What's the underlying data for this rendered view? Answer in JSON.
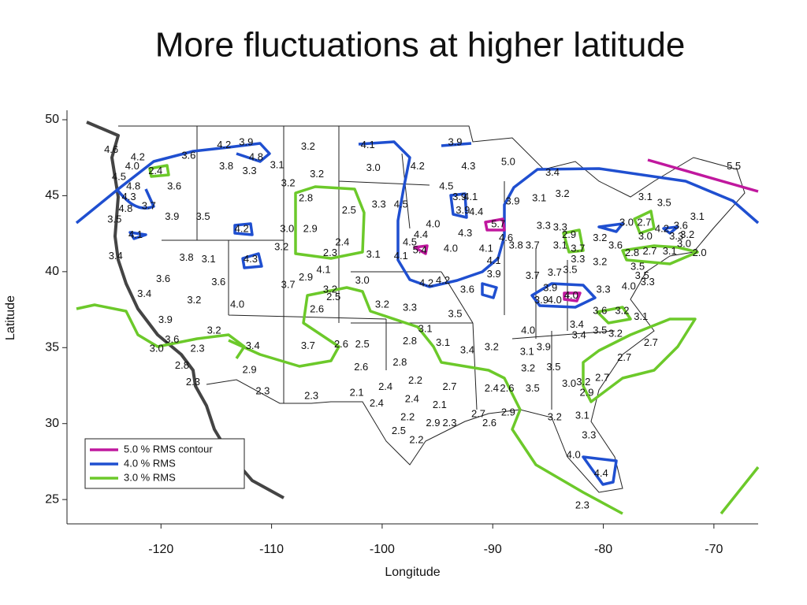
{
  "chart_data": {
    "type": "map",
    "title": "More fluctuations at higher latitude",
    "x_label": "Longitude",
    "y_label": "Latitude",
    "xlim": [
      -128.5,
      -66
    ],
    "ylim": [
      23.4,
      50
    ],
    "xticks": [
      -120,
      -110,
      -100,
      -90,
      -80,
      -70
    ],
    "yticks": [
      25,
      30,
      35,
      40,
      45,
      50
    ],
    "legend_corner": "lower left",
    "series": [
      {
        "name": "5.0 % RMS contour",
        "color": "#c0189e"
      },
      {
        "name": "4.0 % RMS",
        "color": "#1f4fd0"
      },
      {
        "name": "3.0 % RMS",
        "color": "#6cc92a"
      }
    ],
    "points": [
      {
        "x": -124.5,
        "y": 48,
        "value": 4.6,
        "label": "4.6"
      },
      {
        "x": -122.1,
        "y": 47.5,
        "value": 4.2,
        "label": "4.2"
      },
      {
        "x": -117.5,
        "y": 47.6,
        "value": 3.6,
        "label": "3.6"
      },
      {
        "x": -114.3,
        "y": 48.3,
        "value": 4.2,
        "label": "4.2"
      },
      {
        "x": -112.3,
        "y": 48.5,
        "value": 3.9,
        "label": "3.9"
      },
      {
        "x": -111.4,
        "y": 47.5,
        "value": 4.8,
        "label": "4.8"
      },
      {
        "x": -109.5,
        "y": 47,
        "value": 3.1,
        "label": "3.1"
      },
      {
        "x": -114.1,
        "y": 46.9,
        "value": 3.8,
        "label": "3.8"
      },
      {
        "x": -112,
        "y": 46.6,
        "value": 3.3,
        "label": "3.3"
      },
      {
        "x": -106.7,
        "y": 48.2,
        "value": 3.2,
        "label": "3.2"
      },
      {
        "x": -105.9,
        "y": 46.4,
        "value": 3.2,
        "label": "3.2"
      },
      {
        "x": -108.5,
        "y": 45.8,
        "value": 3.2,
        "label": "3.2"
      },
      {
        "x": -100.8,
        "y": 46.8,
        "value": 3,
        "label": "3.0"
      },
      {
        "x": -101.3,
        "y": 48.3,
        "value": 4.1,
        "label": "4.1"
      },
      {
        "x": -93.4,
        "y": 48.5,
        "value": 3.9,
        "label": "3.9"
      },
      {
        "x": -96.8,
        "y": 46.9,
        "value": 4.2,
        "label": "4.2"
      },
      {
        "x": -92.2,
        "y": 46.9,
        "value": 4.3,
        "label": "4.3"
      },
      {
        "x": -88.6,
        "y": 47.2,
        "value": 5,
        "label": "5.0"
      },
      {
        "x": -122.6,
        "y": 46.9,
        "value": 4,
        "label": "4.0"
      },
      {
        "x": -123.8,
        "y": 46.2,
        "value": 4.5,
        "label": "4.5"
      },
      {
        "x": -120.5,
        "y": 46.6,
        "value": 2.4,
        "label": "2.4"
      },
      {
        "x": -122.5,
        "y": 45.6,
        "value": 4.8,
        "label": "4.8"
      },
      {
        "x": -118.8,
        "y": 45.6,
        "value": 3.6,
        "label": "3.6"
      },
      {
        "x": -122.9,
        "y": 44.9,
        "value": 4.3,
        "label": "4.3"
      },
      {
        "x": -121.1,
        "y": 44.3,
        "value": 3.7,
        "label": "3.7"
      },
      {
        "x": -123.2,
        "y": 44.1,
        "value": 4.8,
        "label": "4.8"
      },
      {
        "x": -124.2,
        "y": 43.4,
        "value": 3.5,
        "label": "3.5"
      },
      {
        "x": -119,
        "y": 43.6,
        "value": 3.9,
        "label": "3.9"
      },
      {
        "x": -116.2,
        "y": 43.6,
        "value": 3.5,
        "label": "3.5"
      },
      {
        "x": -106.9,
        "y": 44.8,
        "value": 2.8,
        "label": "2.8"
      },
      {
        "x": -103,
        "y": 44,
        "value": 2.5,
        "label": "2.5"
      },
      {
        "x": -100.3,
        "y": 44.4,
        "value": 3.3,
        "label": "3.3"
      },
      {
        "x": -98.3,
        "y": 44.4,
        "value": 4.5,
        "label": "4.5"
      },
      {
        "x": -108.6,
        "y": 42.8,
        "value": 3,
        "label": "3.0"
      },
      {
        "x": -106.5,
        "y": 42.8,
        "value": 2.9,
        "label": "2.9"
      },
      {
        "x": -112.7,
        "y": 42.8,
        "value": 4.2,
        "label": "4.2"
      },
      {
        "x": -122.3,
        "y": 42.4,
        "value": 4.1,
        "label": "4.1"
      },
      {
        "x": -103.6,
        "y": 41.9,
        "value": 2.4,
        "label": "2.4"
      },
      {
        "x": -109.1,
        "y": 41.6,
        "value": 3.2,
        "label": "3.2"
      },
      {
        "x": -104.7,
        "y": 41.2,
        "value": 2.3,
        "label": "2.3"
      },
      {
        "x": -100.8,
        "y": 41.1,
        "value": 3.1,
        "label": "3.1"
      },
      {
        "x": -111.9,
        "y": 40.8,
        "value": 4.3,
        "label": "4.3"
      },
      {
        "x": -124.1,
        "y": 41,
        "value": 3.4,
        "label": "3.4"
      },
      {
        "x": -117.7,
        "y": 40.9,
        "value": 3.8,
        "label": "3.8"
      },
      {
        "x": -115.7,
        "y": 40.8,
        "value": 3.1,
        "label": "3.1"
      },
      {
        "x": -119.8,
        "y": 39.5,
        "value": 3.6,
        "label": "3.6"
      },
      {
        "x": -114.8,
        "y": 39.3,
        "value": 3.6,
        "label": "3.6"
      },
      {
        "x": -108.5,
        "y": 39.1,
        "value": 3.7,
        "label": "3.7"
      },
      {
        "x": -106.9,
        "y": 39.6,
        "value": 2.9,
        "label": "2.9"
      },
      {
        "x": -105.3,
        "y": 40.1,
        "value": 4.1,
        "label": "4.1"
      },
      {
        "x": -121.5,
        "y": 38.5,
        "value": 3.4,
        "label": "3.4"
      },
      {
        "x": -117,
        "y": 38.1,
        "value": 3.2,
        "label": "3.2"
      },
      {
        "x": -113.1,
        "y": 37.8,
        "value": 4,
        "label": "4.0"
      },
      {
        "x": -104.7,
        "y": 38.8,
        "value": 3.2,
        "label": "3.2"
      },
      {
        "x": -104.4,
        "y": 38.3,
        "value": 2.5,
        "label": "2.5"
      },
      {
        "x": -105.9,
        "y": 37.5,
        "value": 2.6,
        "label": "2.6"
      },
      {
        "x": -101.8,
        "y": 39.4,
        "value": 3,
        "label": "3.0"
      },
      {
        "x": -100,
        "y": 37.8,
        "value": 3.2,
        "label": "3.2"
      },
      {
        "x": -97.5,
        "y": 37.6,
        "value": 3.3,
        "label": "3.3"
      },
      {
        "x": -119.6,
        "y": 36.8,
        "value": 3.9,
        "label": "3.9"
      },
      {
        "x": -115.2,
        "y": 36.1,
        "value": 3.2,
        "label": "3.2"
      },
      {
        "x": -119,
        "y": 35.5,
        "value": 3.6,
        "label": "3.6"
      },
      {
        "x": -120.4,
        "y": 34.9,
        "value": 3,
        "label": "3.0"
      },
      {
        "x": -116.7,
        "y": 34.9,
        "value": 2.3,
        "label": "2.3"
      },
      {
        "x": -111.7,
        "y": 35.1,
        "value": 3.4,
        "label": "3.4"
      },
      {
        "x": -106.7,
        "y": 35.1,
        "value": 3.7,
        "label": "3.7"
      },
      {
        "x": -103.7,
        "y": 35.2,
        "value": 2.6,
        "label": "2.6"
      },
      {
        "x": -101.8,
        "y": 35.2,
        "value": 2.5,
        "label": "2.5"
      },
      {
        "x": -97.5,
        "y": 35.4,
        "value": 2.8,
        "label": "2.8"
      },
      {
        "x": -94.5,
        "y": 35.3,
        "value": 3.1,
        "label": "3.1"
      },
      {
        "x": -92.3,
        "y": 34.8,
        "value": 3.4,
        "label": "3.4"
      },
      {
        "x": -90.1,
        "y": 35,
        "value": 3.2,
        "label": "3.2"
      },
      {
        "x": -96.1,
        "y": 36.2,
        "value": 3.1,
        "label": "3.1"
      },
      {
        "x": -93.4,
        "y": 37.2,
        "value": 3.5,
        "label": "3.5"
      },
      {
        "x": -118.1,
        "y": 33.8,
        "value": 2.8,
        "label": "2.8"
      },
      {
        "x": -117.1,
        "y": 32.7,
        "value": 2.3,
        "label": "2.3"
      },
      {
        "x": -112,
        "y": 33.5,
        "value": 2.9,
        "label": "2.9"
      },
      {
        "x": -110.8,
        "y": 32.1,
        "value": 2.3,
        "label": "2.3"
      },
      {
        "x": -106.4,
        "y": 31.8,
        "value": 2.3,
        "label": "2.3"
      },
      {
        "x": -101.9,
        "y": 33.7,
        "value": 2.6,
        "label": "2.6"
      },
      {
        "x": -98.4,
        "y": 34,
        "value": 2.8,
        "label": "2.8"
      },
      {
        "x": -97,
        "y": 32.8,
        "value": 2.2,
        "label": "2.2"
      },
      {
        "x": -99.7,
        "y": 32.4,
        "value": 2.4,
        "label": "2.4"
      },
      {
        "x": -102.3,
        "y": 32,
        "value": 2.1,
        "label": "2.1"
      },
      {
        "x": -100.5,
        "y": 31.3,
        "value": 2.4,
        "label": "2.4"
      },
      {
        "x": -97.3,
        "y": 31.6,
        "value": 2.4,
        "label": "2.4"
      },
      {
        "x": -93.9,
        "y": 32.4,
        "value": 2.7,
        "label": "2.7"
      },
      {
        "x": -94.8,
        "y": 31.2,
        "value": 2.1,
        "label": "2.1"
      },
      {
        "x": -97.7,
        "y": 30.4,
        "value": 2.2,
        "label": "2.2"
      },
      {
        "x": -98.5,
        "y": 29.5,
        "value": 2.5,
        "label": "2.5"
      },
      {
        "x": -96.9,
        "y": 28.9,
        "value": 2.2,
        "label": "2.2"
      },
      {
        "x": -95.4,
        "y": 30,
        "value": 2.9,
        "label": "2.9"
      },
      {
        "x": -93.9,
        "y": 30,
        "value": 2.3,
        "label": "2.3"
      },
      {
        "x": -91.3,
        "y": 30.6,
        "value": 2.7,
        "label": "2.7"
      },
      {
        "x": -90.3,
        "y": 30,
        "value": 2.6,
        "label": "2.6"
      },
      {
        "x": -90.1,
        "y": 32.3,
        "value": 2.4,
        "label": "2.4"
      },
      {
        "x": -88.7,
        "y": 32.3,
        "value": 2.6,
        "label": "2.6"
      },
      {
        "x": -88.6,
        "y": 30.7,
        "value": 2.9,
        "label": "2.9"
      },
      {
        "x": -86.4,
        "y": 32.3,
        "value": 3.5,
        "label": "3.5"
      },
      {
        "x": -86.8,
        "y": 33.6,
        "value": 3.2,
        "label": "3.2"
      },
      {
        "x": -86.9,
        "y": 34.7,
        "value": 3.1,
        "label": "3.1"
      },
      {
        "x": -86.8,
        "y": 36.1,
        "value": 4,
        "label": "4.0"
      },
      {
        "x": -85.4,
        "y": 35,
        "value": 3.9,
        "label": "3.9"
      },
      {
        "x": -84.5,
        "y": 33.7,
        "value": 3.5,
        "label": "3.5"
      },
      {
        "x": -83.1,
        "y": 32.6,
        "value": 3,
        "label": "3.0"
      },
      {
        "x": -81.8,
        "y": 32.7,
        "value": 3.2,
        "label": "3.2"
      },
      {
        "x": -84.4,
        "y": 30.4,
        "value": 3.2,
        "label": "3.2"
      },
      {
        "x": -81.9,
        "y": 30.5,
        "value": 3.1,
        "label": "3.1"
      },
      {
        "x": -81.3,
        "y": 29.2,
        "value": 3.3,
        "label": "3.3"
      },
      {
        "x": -82.7,
        "y": 27.9,
        "value": 4,
        "label": "4.0"
      },
      {
        "x": -80.2,
        "y": 26.7,
        "value": 4.4,
        "label": "4.4"
      },
      {
        "x": -81.9,
        "y": 24.6,
        "value": 2.3,
        "label": "2.3"
      },
      {
        "x": -81.5,
        "y": 32,
        "value": 2.9,
        "label": "2.9"
      },
      {
        "x": -80.1,
        "y": 33,
        "value": 2.7,
        "label": "2.7"
      },
      {
        "x": -78.1,
        "y": 34.3,
        "value": 2.7,
        "label": "2.7"
      },
      {
        "x": -75.7,
        "y": 35.3,
        "value": 2.7,
        "label": "2.7"
      },
      {
        "x": -78.9,
        "y": 35.9,
        "value": 3.2,
        "label": "3.2"
      },
      {
        "x": -80.3,
        "y": 36.1,
        "value": 3.5,
        "label": "3.5"
      },
      {
        "x": -82.4,
        "y": 36.5,
        "value": 3.4,
        "label": "3.4"
      },
      {
        "x": -82.2,
        "y": 35.8,
        "value": 3.4,
        "label": "3.4"
      },
      {
        "x": -80.3,
        "y": 37.4,
        "value": 3.6,
        "label": "3.6"
      },
      {
        "x": -78.3,
        "y": 37.4,
        "value": 3.2,
        "label": "3.2"
      },
      {
        "x": -76.6,
        "y": 37,
        "value": 3.1,
        "label": "3.1"
      },
      {
        "x": -84.4,
        "y": 38.1,
        "value": 4,
        "label": "4.0"
      },
      {
        "x": -82.9,
        "y": 38.4,
        "value": 4,
        "label": "4.0"
      },
      {
        "x": -84.8,
        "y": 38.9,
        "value": 3.9,
        "label": "3.9"
      },
      {
        "x": -85.6,
        "y": 38.1,
        "value": 3.9,
        "label": "3.9"
      },
      {
        "x": -80,
        "y": 38.8,
        "value": 3.3,
        "label": "3.3"
      },
      {
        "x": -77.7,
        "y": 39,
        "value": 4,
        "label": "4.0"
      },
      {
        "x": -76.5,
        "y": 39.7,
        "value": 3.5,
        "label": "3.5"
      },
      {
        "x": -76.9,
        "y": 40.3,
        "value": 3.5,
        "label": "3.5"
      },
      {
        "x": -76,
        "y": 39.3,
        "value": 3.3,
        "label": "3.3"
      },
      {
        "x": -86.4,
        "y": 39.7,
        "value": 3.7,
        "label": "3.7"
      },
      {
        "x": -84.4,
        "y": 39.9,
        "value": 3.7,
        "label": "3.7"
      },
      {
        "x": -83,
        "y": 40.1,
        "value": 3.5,
        "label": "3.5"
      },
      {
        "x": -89.9,
        "y": 39.8,
        "value": 3.9,
        "label": "3.9"
      },
      {
        "x": -92.3,
        "y": 38.8,
        "value": 3.6,
        "label": "3.6"
      },
      {
        "x": -94.5,
        "y": 39.4,
        "value": 4.2,
        "label": "4.2"
      },
      {
        "x": -96,
        "y": 39.2,
        "value": 4.2,
        "label": "4.2"
      },
      {
        "x": -93.8,
        "y": 41.5,
        "value": 4,
        "label": "4.0"
      },
      {
        "x": -90.6,
        "y": 41.5,
        "value": 4.1,
        "label": "4.1"
      },
      {
        "x": -89.9,
        "y": 40.7,
        "value": 4.1,
        "label": "4.1"
      },
      {
        "x": -96.6,
        "y": 41.4,
        "value": 5.4,
        "label": "5.4"
      },
      {
        "x": -98.3,
        "y": 41,
        "value": 4.1,
        "label": "4.1"
      },
      {
        "x": -97.5,
        "y": 41.9,
        "value": 4.5,
        "label": "4.5"
      },
      {
        "x": -96.5,
        "y": 42.4,
        "value": 4.4,
        "label": "4.4"
      },
      {
        "x": -94.2,
        "y": 45.6,
        "value": 4.5,
        "label": "4.5"
      },
      {
        "x": -95.4,
        "y": 43.1,
        "value": 4,
        "label": "4.0"
      },
      {
        "x": -92.5,
        "y": 42.5,
        "value": 4.3,
        "label": "4.3"
      },
      {
        "x": -89.5,
        "y": 43.1,
        "value": 5.7,
        "label": "5.7"
      },
      {
        "x": -88.8,
        "y": 42.2,
        "value": 4.6,
        "label": "4.6"
      },
      {
        "x": -87.9,
        "y": 41.7,
        "value": 3.8,
        "label": "3.8"
      },
      {
        "x": -86.4,
        "y": 41.7,
        "value": 3.7,
        "label": "3.7"
      },
      {
        "x": -83.9,
        "y": 41.7,
        "value": 3.1,
        "label": "3.1"
      },
      {
        "x": -82.3,
        "y": 41.5,
        "value": 3.7,
        "label": "3.7"
      },
      {
        "x": -82.3,
        "y": 40.8,
        "value": 3.3,
        "label": "3.3"
      },
      {
        "x": -80.3,
        "y": 40.6,
        "value": 3.2,
        "label": "3.2"
      },
      {
        "x": -78.9,
        "y": 41.7,
        "value": 3.6,
        "label": "3.6"
      },
      {
        "x": -80.3,
        "y": 42.2,
        "value": 3.2,
        "label": "3.2"
      },
      {
        "x": -83.1,
        "y": 42.4,
        "value": 2.9,
        "label": "2.9"
      },
      {
        "x": -85.4,
        "y": 43,
        "value": 3.3,
        "label": "3.3"
      },
      {
        "x": -83.9,
        "y": 42.9,
        "value": 3.3,
        "label": "3.3"
      },
      {
        "x": -93,
        "y": 44.9,
        "value": 3.9,
        "label": "3.9"
      },
      {
        "x": -92,
        "y": 44.9,
        "value": 4.1,
        "label": "4.1"
      },
      {
        "x": -92.7,
        "y": 44,
        "value": 3.9,
        "label": "3.9"
      },
      {
        "x": -88.2,
        "y": 44.6,
        "value": 3.9,
        "label": "3.9"
      },
      {
        "x": -85.8,
        "y": 44.8,
        "value": 3.1,
        "label": "3.1"
      },
      {
        "x": -83.7,
        "y": 45.1,
        "value": 3.2,
        "label": "3.2"
      },
      {
        "x": -84.6,
        "y": 46.5,
        "value": 3.4,
        "label": "3.4"
      },
      {
        "x": -91.5,
        "y": 43.9,
        "value": 4.4,
        "label": "4.4"
      },
      {
        "x": -77.9,
        "y": 43.2,
        "value": 3,
        "label": "3.0"
      },
      {
        "x": -76.3,
        "y": 43.2,
        "value": 2.7,
        "label": "2.7"
      },
      {
        "x": -76.2,
        "y": 42.3,
        "value": 3,
        "label": "3.0"
      },
      {
        "x": -77.4,
        "y": 41.2,
        "value": 2.8,
        "label": "2.8"
      },
      {
        "x": -75.8,
        "y": 41.3,
        "value": 2.7,
        "label": "2.7"
      },
      {
        "x": -74,
        "y": 41.3,
        "value": 3.1,
        "label": "3.1"
      },
      {
        "x": -72.7,
        "y": 41.8,
        "value": 3,
        "label": "3.0"
      },
      {
        "x": -71.3,
        "y": 41.2,
        "value": 2,
        "label": "2.0"
      },
      {
        "x": -74.7,
        "y": 42.8,
        "value": 4.2,
        "label": "4.2"
      },
      {
        "x": -73.4,
        "y": 42.3,
        "value": 3.3,
        "label": "3.3"
      },
      {
        "x": -72.4,
        "y": 42.4,
        "value": 3.2,
        "label": "3.2"
      },
      {
        "x": -73,
        "y": 43,
        "value": 3.6,
        "label": "3.6"
      },
      {
        "x": -71.5,
        "y": 43.6,
        "value": 3.1,
        "label": "3.1"
      },
      {
        "x": -74.5,
        "y": 44.5,
        "value": 3.5,
        "label": "3.5"
      },
      {
        "x": -76.2,
        "y": 44.9,
        "value": 3.1,
        "label": "3.1"
      },
      {
        "x": -68.2,
        "y": 46.9,
        "value": 5.5,
        "label": "5.5"
      }
    ]
  }
}
